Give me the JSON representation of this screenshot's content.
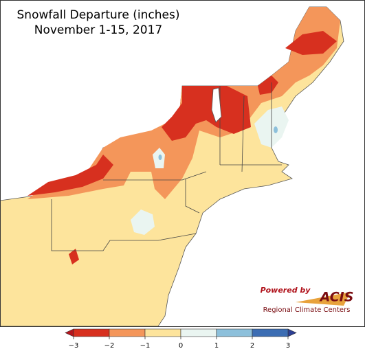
{
  "map": {
    "title": "Snowfall Departure (inches)",
    "subtitle": "November 1-15, 2017",
    "colorbar": {
      "ticks": [
        {
          "value": -3,
          "label": "−3"
        },
        {
          "value": -2,
          "label": "−2"
        },
        {
          "value": -1,
          "label": "−1"
        },
        0,
        1,
        2,
        3
      ],
      "colors": [
        "#d7301f",
        "#f4965a",
        "#fde49c",
        "#eaf5f1",
        "#8dc0db",
        "#3c6db3"
      ],
      "under_color": "#b5161e",
      "over_color": "#2c3f94"
    },
    "logo": {
      "powered": "Powered by",
      "name": "ACIS",
      "caption": "Regional Climate Centers"
    }
  }
}
